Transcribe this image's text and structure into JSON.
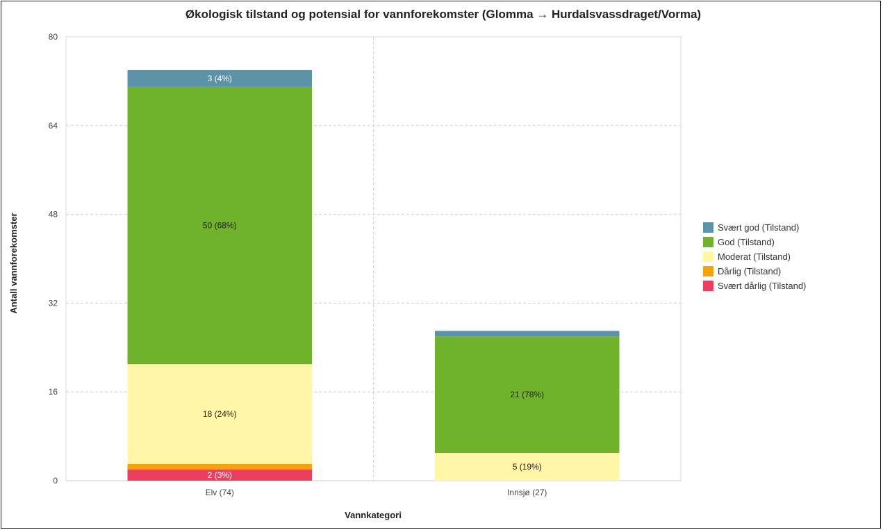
{
  "chart_data": {
    "type": "bar",
    "stacked": true,
    "title": "Økologisk tilstand og potensial for vannforekomster (Glomma → Hurdalsvassdraget/Vorma)",
    "xlabel": "Vannkategori",
    "ylabel": "Antall vannforekomster",
    "ylim": [
      0,
      80
    ],
    "yticks": [
      "0",
      "16",
      "32",
      "48",
      "64",
      "80"
    ],
    "grid": true,
    "legend_position": "right",
    "categories": [
      "Elv (74)",
      "Innsjø (27)"
    ],
    "series": [
      {
        "name": "Svært dårlig (Tilstand)",
        "color": "#e8405e",
        "values": [
          2,
          0
        ],
        "labels": [
          "2 (3%)",
          ""
        ],
        "label_color": "#ffffff"
      },
      {
        "name": "Dårlig (Tilstand)",
        "color": "#f5a30a",
        "values": [
          1,
          0
        ],
        "labels": [
          "",
          ""
        ],
        "label_color": "#222222"
      },
      {
        "name": "Moderat (Tilstand)",
        "color": "#fff6a8",
        "values": [
          18,
          5
        ],
        "labels": [
          "18 (24%)",
          "5 (19%)"
        ],
        "label_color": "#222222"
      },
      {
        "name": "God (Tilstand)",
        "color": "#70b22c",
        "values": [
          50,
          21
        ],
        "labels": [
          "50 (68%)",
          "21 (78%)"
        ],
        "label_color": "#222222"
      },
      {
        "name": "Svært god (Tilstand)",
        "color": "#5b93a8",
        "values": [
          3,
          1
        ],
        "labels": [
          "3 (4%)",
          ""
        ],
        "label_color": "#ffffff"
      }
    ],
    "legend_order": [
      "Svært god (Tilstand)",
      "God (Tilstand)",
      "Moderat (Tilstand)",
      "Dårlig (Tilstand)",
      "Svært dårlig (Tilstand)"
    ]
  }
}
